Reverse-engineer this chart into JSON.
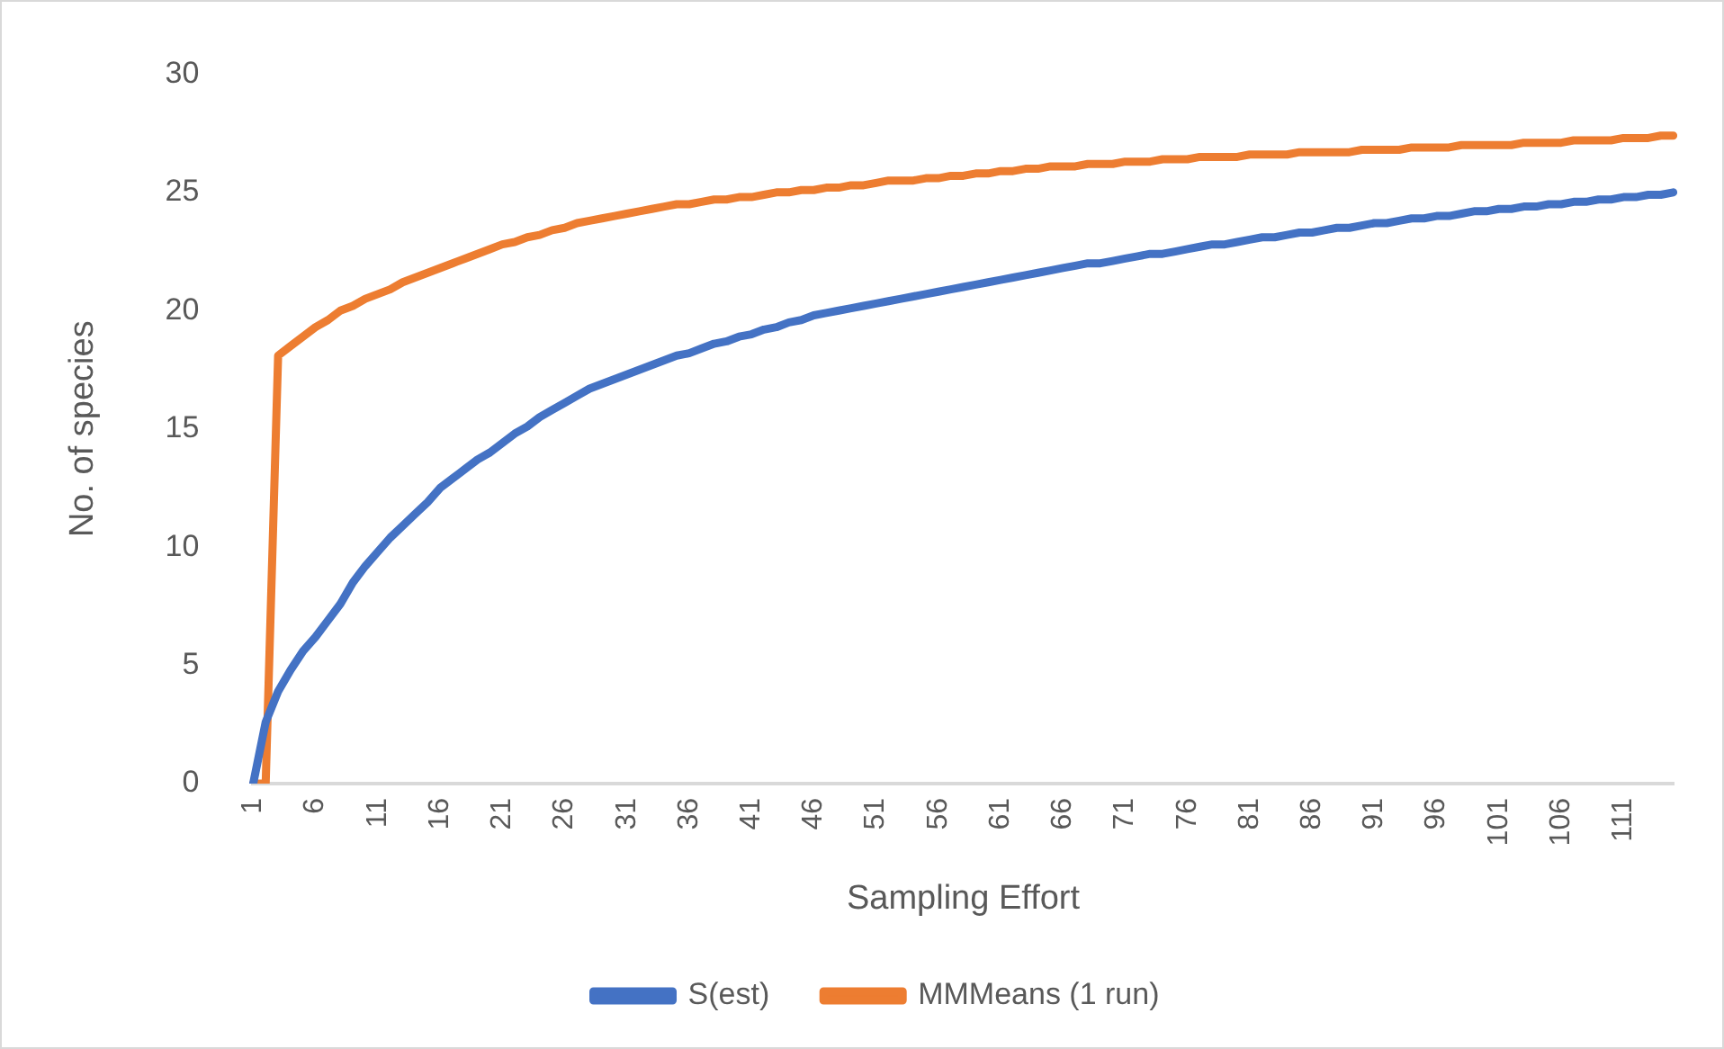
{
  "chart_data": {
    "type": "line",
    "xlabel": "Sampling Effort",
    "ylabel": "No. of species",
    "categories": [
      "1",
      null,
      null,
      null,
      null,
      "6",
      null,
      null,
      null,
      null,
      "11",
      null,
      null,
      null,
      null,
      "16",
      null,
      null,
      null,
      null,
      "21",
      null,
      null,
      null,
      null,
      "26",
      null,
      null,
      null,
      null,
      "31",
      null,
      null,
      null,
      null,
      "36",
      null,
      null,
      null,
      null,
      "41",
      null,
      null,
      null,
      null,
      "46",
      null,
      null,
      null,
      null,
      "51",
      null,
      null,
      null,
      null,
      "56",
      null,
      null,
      null,
      null,
      "61",
      null,
      null,
      null,
      null,
      "66",
      null,
      null,
      null,
      null,
      "71",
      null,
      null,
      null,
      null,
      "76",
      null,
      null,
      null,
      null,
      "81",
      null,
      null,
      null,
      null,
      "86",
      null,
      null,
      null,
      null,
      "91",
      null,
      null,
      null,
      null,
      "96",
      null,
      null,
      null,
      null,
      "101",
      null,
      null,
      null,
      null,
      "106",
      null,
      null,
      null,
      null,
      "111",
      null,
      null,
      null,
      null
    ],
    "series": [
      {
        "name": "S(est)",
        "color": "#4472c4",
        "values": [
          0,
          2.6,
          3.9,
          4.8,
          5.6,
          6.2,
          6.9,
          7.6,
          8.5,
          9.2,
          9.8,
          10.4,
          10.9,
          11.4,
          11.9,
          12.5,
          12.9,
          13.3,
          13.7,
          14.0,
          14.4,
          14.8,
          15.1,
          15.5,
          15.8,
          16.1,
          16.4,
          16.7,
          16.9,
          17.1,
          17.3,
          17.5,
          17.7,
          17.9,
          18.1,
          18.2,
          18.4,
          18.6,
          18.7,
          18.9,
          19.0,
          19.2,
          19.3,
          19.5,
          19.6,
          19.8,
          19.9,
          20.0,
          20.1,
          20.2,
          20.3,
          20.4,
          20.5,
          20.6,
          20.7,
          20.8,
          20.9,
          21.0,
          21.1,
          21.2,
          21.3,
          21.4,
          21.5,
          21.6,
          21.7,
          21.8,
          21.9,
          22.0,
          22.0,
          22.1,
          22.2,
          22.3,
          22.4,
          22.4,
          22.5,
          22.6,
          22.7,
          22.8,
          22.8,
          22.9,
          23.0,
          23.1,
          23.1,
          23.2,
          23.3,
          23.3,
          23.4,
          23.5,
          23.5,
          23.6,
          23.7,
          23.7,
          23.8,
          23.9,
          23.9,
          24.0,
          24.0,
          24.1,
          24.2,
          24.2,
          24.3,
          24.3,
          24.4,
          24.4,
          24.5,
          24.5,
          24.6,
          24.6,
          24.7,
          24.7,
          24.8,
          24.8,
          24.9,
          24.9,
          25.0
        ]
      },
      {
        "name": "MMMeans (1 run)",
        "color": "#ed7d31",
        "values": [
          0,
          0,
          18.1,
          18.5,
          18.9,
          19.3,
          19.6,
          20.0,
          20.2,
          20.5,
          20.7,
          20.9,
          21.2,
          21.4,
          21.6,
          21.8,
          22.0,
          22.2,
          22.4,
          22.6,
          22.8,
          22.9,
          23.1,
          23.2,
          23.4,
          23.5,
          23.7,
          23.8,
          23.9,
          24.0,
          24.1,
          24.2,
          24.3,
          24.4,
          24.5,
          24.5,
          24.6,
          24.7,
          24.7,
          24.8,
          24.8,
          24.9,
          25.0,
          25.0,
          25.1,
          25.1,
          25.2,
          25.2,
          25.3,
          25.3,
          25.4,
          25.5,
          25.5,
          25.5,
          25.6,
          25.6,
          25.7,
          25.7,
          25.8,
          25.8,
          25.9,
          25.9,
          26.0,
          26.0,
          26.1,
          26.1,
          26.1,
          26.2,
          26.2,
          26.2,
          26.3,
          26.3,
          26.3,
          26.4,
          26.4,
          26.4,
          26.5,
          26.5,
          26.5,
          26.5,
          26.6,
          26.6,
          26.6,
          26.6,
          26.7,
          26.7,
          26.7,
          26.7,
          26.7,
          26.8,
          26.8,
          26.8,
          26.8,
          26.9,
          26.9,
          26.9,
          26.9,
          27.0,
          27.0,
          27.0,
          27.0,
          27.0,
          27.1,
          27.1,
          27.1,
          27.1,
          27.2,
          27.2,
          27.2,
          27.2,
          27.3,
          27.3,
          27.3,
          27.4,
          27.4
        ]
      }
    ],
    "ylim": [
      0,
      30
    ],
    "yticks": [
      0,
      5,
      10,
      15,
      20,
      25,
      30
    ],
    "grid": false,
    "legend": "bottom",
    "marker": "none",
    "line_style": "solid"
  }
}
